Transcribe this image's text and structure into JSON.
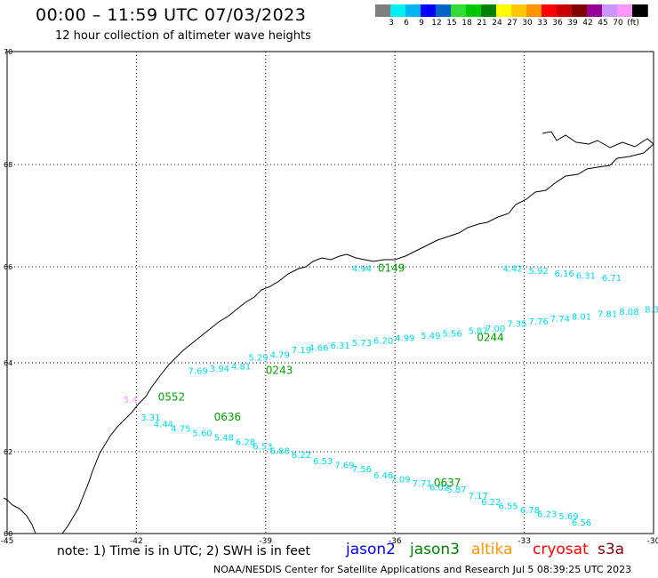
{
  "title": "00:00 – 11:59 UTC 07/03/2023",
  "subtitle": "12 hour collection of altimeter wave heights",
  "colorbar": {
    "colors": [
      "#7f7f7f",
      "#00f0f0",
      "#00b4f0",
      "#0000ff",
      "#0064c8",
      "#32dc32",
      "#00c800",
      "#008200",
      "#ffff00",
      "#ffc800",
      "#ff9600",
      "#ff0000",
      "#c80000",
      "#820000",
      "#960096",
      "#c896ff",
      "#ff96ff",
      "#000000"
    ],
    "labels": [
      "3",
      "6",
      "9",
      "12",
      "15",
      "18",
      "21",
      "24",
      "27",
      "30",
      "33",
      "36",
      "39",
      "42",
      "45",
      "70",
      "(ft)"
    ]
  },
  "axes": {
    "lon_labels": [
      "-45",
      "-42",
      "-39",
      "-36",
      "-33",
      "-30"
    ],
    "lat_labels": [
      "70",
      "68",
      "66",
      "64",
      "62",
      "60"
    ],
    "lon_range": [
      -45,
      -30
    ],
    "lat_range": [
      60,
      70
    ]
  },
  "tracks": [
    {
      "time": "0149",
      "color": "#00a000",
      "time_pos": [
        -36.4,
        65.9
      ],
      "points": [
        {
          "lon": -37.0,
          "lat": 65.9,
          "v": "4.94"
        }
      ]
    },
    {
      "time": "0244",
      "color": "#00a000",
      "time_pos": [
        -34.1,
        64.45
      ],
      "points": [
        {
          "lon": -33.5,
          "lat": 65.9,
          "v": "4.42"
        },
        {
          "lon": -32.9,
          "lat": 65.85,
          "v": "5.92"
        },
        {
          "lon": -32.3,
          "lat": 65.8,
          "v": "6.16"
        },
        {
          "lon": -31.8,
          "lat": 65.75,
          "v": "6.31"
        },
        {
          "lon": -31.2,
          "lat": 65.7,
          "v": "6.71"
        },
        {
          "lon": -30.2,
          "lat": 65.05,
          "v": "8.35"
        },
        {
          "lon": -30.8,
          "lat": 65.0,
          "v": "8.08"
        },
        {
          "lon": -31.3,
          "lat": 64.95,
          "v": "7.81"
        },
        {
          "lon": -31.9,
          "lat": 64.9,
          "v": "8.01"
        },
        {
          "lon": -32.4,
          "lat": 64.85,
          "v": "7.74"
        },
        {
          "lon": -32.9,
          "lat": 64.8,
          "v": "7.76"
        },
        {
          "lon": -33.4,
          "lat": 64.75,
          "v": "7.35"
        },
        {
          "lon": -33.9,
          "lat": 64.65,
          "v": "7.00"
        },
        {
          "lon": -34.3,
          "lat": 64.6,
          "v": "5.87"
        },
        {
          "lon": -34.9,
          "lat": 64.55,
          "v": "5.56"
        },
        {
          "lon": -35.4,
          "lat": 64.5,
          "v": "5.49"
        },
        {
          "lon": -36.0,
          "lat": 64.45,
          "v": "4.99"
        },
        {
          "lon": -36.5,
          "lat": 64.4,
          "v": "6.20"
        },
        {
          "lon": -37.0,
          "lat": 64.35,
          "v": "5.73"
        },
        {
          "lon": -37.5,
          "lat": 64.3,
          "v": "6.31"
        },
        {
          "lon": -38.0,
          "lat": 64.25,
          "v": "4.66"
        },
        {
          "lon": -38.4,
          "lat": 64.2,
          "v": "7.19"
        },
        {
          "lon": -38.9,
          "lat": 64.1,
          "v": "4.79"
        },
        {
          "lon": -39.4,
          "lat": 64.05,
          "v": "5.29"
        }
      ]
    },
    {
      "time": "0243",
      "color": "#00a000",
      "time_pos": [
        -39.0,
        63.75
      ],
      "points": [
        {
          "lon": -39.8,
          "lat": 63.85,
          "v": "4.81"
        },
        {
          "lon": -40.3,
          "lat": 63.8,
          "v": "3.94"
        },
        {
          "lon": -40.8,
          "lat": 63.75,
          "v": "7.69"
        }
      ]
    },
    {
      "time": "0637",
      "color": "#00a000",
      "time_pos": [
        -35.1,
        61.15
      ],
      "points": [
        {
          "lon": -41.9,
          "lat": 62.7,
          "v": "3.31"
        },
        {
          "lon": -41.6,
          "lat": 62.55,
          "v": "4.44"
        },
        {
          "lon": -41.2,
          "lat": 62.45,
          "v": "4.75"
        },
        {
          "lon": -40.7,
          "lat": 62.35,
          "v": "5.60"
        },
        {
          "lon": -40.2,
          "lat": 62.25,
          "v": "5.48"
        },
        {
          "lon": -39.7,
          "lat": 62.15,
          "v": "6.28"
        },
        {
          "lon": -39.3,
          "lat": 62.05,
          "v": "6.53"
        },
        {
          "lon": -38.9,
          "lat": 61.95,
          "v": "6.88"
        },
        {
          "lon": -38.4,
          "lat": 61.85,
          "v": "6.22"
        },
        {
          "lon": -37.9,
          "lat": 61.7,
          "v": "6.53"
        },
        {
          "lon": -37.4,
          "lat": 61.6,
          "v": "7.69"
        },
        {
          "lon": -37.0,
          "lat": 61.5,
          "v": "7.56"
        },
        {
          "lon": -36.5,
          "lat": 61.35,
          "v": "6.46"
        },
        {
          "lon": -36.1,
          "lat": 61.25,
          "v": "7.09"
        },
        {
          "lon": -35.6,
          "lat": 61.15,
          "v": "7.71"
        },
        {
          "lon": -35.2,
          "lat": 61.05,
          "v": "6.02"
        },
        {
          "lon": -34.8,
          "lat": 61.0,
          "v": "5.87"
        },
        {
          "lon": -34.3,
          "lat": 60.85,
          "v": "7.17"
        },
        {
          "lon": -34.0,
          "lat": 60.7,
          "v": "6.22"
        },
        {
          "lon": -33.6,
          "lat": 60.6,
          "v": "6.55"
        },
        {
          "lon": -33.1,
          "lat": 60.5,
          "v": "6.78"
        },
        {
          "lon": -32.7,
          "lat": 60.4,
          "v": "6.23"
        },
        {
          "lon": -32.2,
          "lat": 60.35,
          "v": "5.69"
        },
        {
          "lon": -31.9,
          "lat": 60.2,
          "v": "6.56"
        }
      ]
    },
    {
      "time": "0636",
      "color": "#00a000",
      "time_pos": [
        -40.2,
        62.7
      ],
      "points": []
    },
    {
      "time": "0552",
      "color": "#00a000",
      "time_pos": [
        -41.5,
        63.15
      ],
      "points": [
        {
          "lon": -42.3,
          "lat": 63.1,
          "v": "5.4",
          "color": "#ff96ff"
        }
      ]
    }
  ],
  "satellites": [
    {
      "name": "jason2",
      "color": "#0000ff"
    },
    {
      "name": "jason3",
      "color": "#008200"
    },
    {
      "name": "altika",
      "color": "#ff9600"
    },
    {
      "name": "cryosat",
      "color": "#ff0000"
    },
    {
      "name": "s3a",
      "color": "#820000"
    }
  ],
  "note": "note: 1) Time is in UTC; 2) SWH is in feet",
  "credit": "NOAA/NESDIS Center for Satellite Applications and Research   Jul  5 08:39:25 UTC 2023"
}
